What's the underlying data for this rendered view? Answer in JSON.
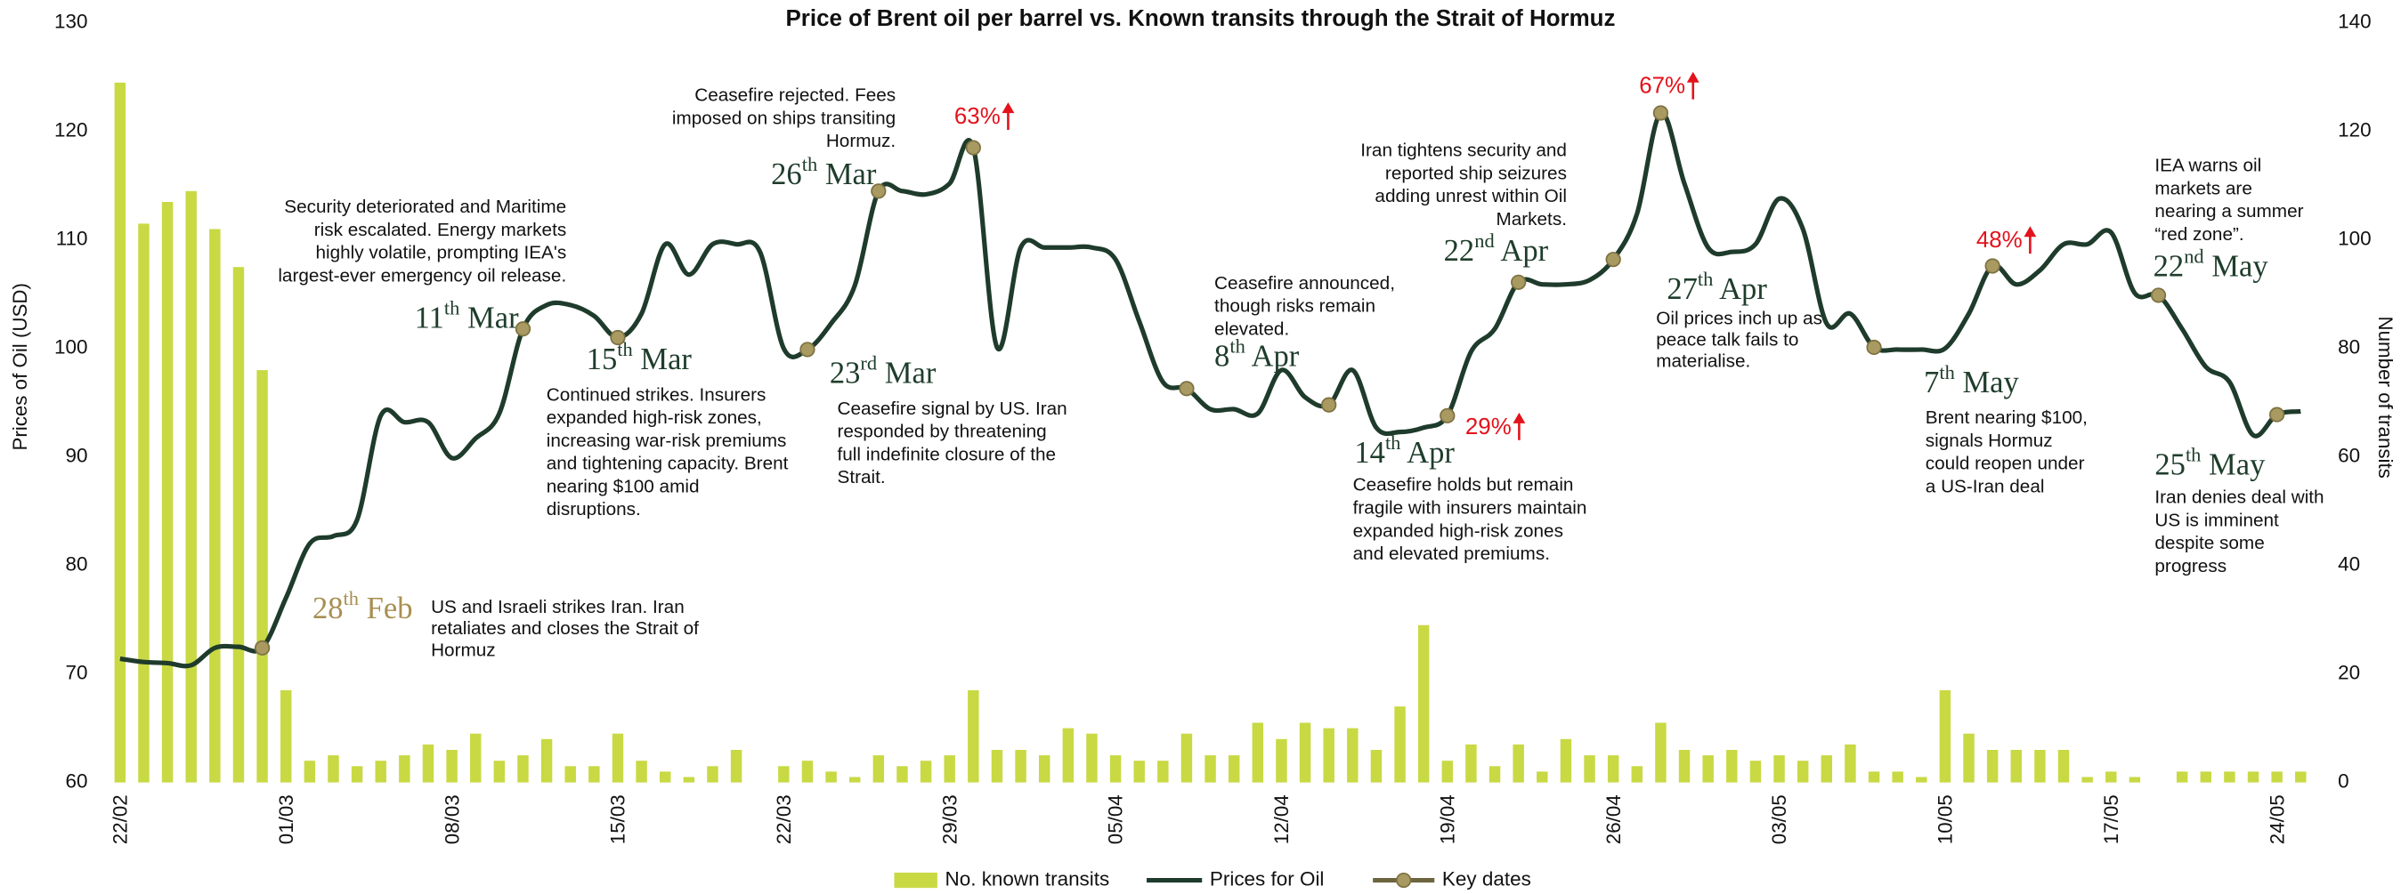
{
  "chart_data": {
    "type": "bar_line",
    "title": "Price of Brent oil per barrel vs. Known transits through the Strait of Hormuz",
    "y_label": "Prices of Oil (USD)",
    "y2_label": "Number of transits",
    "categories": [
      "22/02",
      null,
      null,
      null,
      null,
      null,
      null,
      "01/03",
      null,
      null,
      null,
      null,
      null,
      null,
      "08/03",
      null,
      null,
      null,
      null,
      null,
      null,
      "15/03",
      null,
      null,
      null,
      null,
      null,
      null,
      "22/03",
      null,
      null,
      null,
      null,
      null,
      null,
      "29/03",
      null,
      null,
      null,
      null,
      null,
      null,
      "05/04",
      null,
      null,
      null,
      null,
      null,
      null,
      "12/04",
      null,
      null,
      null,
      null,
      null,
      null,
      "19/04",
      null,
      null,
      null,
      null,
      null,
      null,
      "26/04",
      null,
      null,
      null,
      null,
      null,
      null,
      "03/05",
      null,
      null,
      null,
      null,
      null,
      null,
      "10/05",
      null,
      null,
      null,
      null,
      null,
      null,
      "17/05",
      null,
      null,
      null,
      null,
      null,
      null,
      "24/05",
      null
    ],
    "ylim": [
      60,
      130
    ],
    "yticks": [
      60,
      70,
      80,
      90,
      100,
      110,
      120,
      130
    ],
    "y2lim": [
      0,
      140
    ],
    "y2ticks": [
      0,
      20,
      40,
      60,
      80,
      100,
      120,
      140
    ],
    "grid": false,
    "legend": "bottom",
    "series": [
      {
        "name": "No. known transits",
        "type": "bar",
        "axis": "y2",
        "color": "#c8d944",
        "values": [
          129,
          103,
          107,
          109,
          102,
          95,
          76,
          17,
          4,
          5,
          3,
          4,
          5,
          7,
          6,
          9,
          4,
          5,
          8,
          3,
          3,
          9,
          4,
          2,
          1,
          3,
          6,
          0,
          3,
          4,
          2,
          1,
          5,
          3,
          4,
          5,
          17,
          6,
          6,
          5,
          10,
          9,
          5,
          4,
          4,
          9,
          5,
          5,
          11,
          8,
          11,
          10,
          10,
          6,
          14,
          29,
          4,
          7,
          3,
          7,
          2,
          8,
          5,
          5,
          3,
          11,
          6,
          5,
          6,
          4,
          5,
          4,
          5,
          7,
          2,
          2,
          1,
          17,
          9,
          6,
          6,
          6,
          6,
          1,
          2,
          1,
          0,
          2,
          2,
          2,
          2,
          2,
          2
        ]
      },
      {
        "name": "Prices for Oil",
        "type": "line",
        "color": "#1e3b2b",
        "values": [
          71.4,
          71.1,
          71.0,
          70.8,
          72.4,
          72.5,
          72.4,
          77,
          82,
          82.7,
          84.2,
          93.8,
          93.2,
          93.2,
          89.9,
          91.7,
          94,
          101.8,
          104,
          104,
          103,
          101,
          103.2,
          109.6,
          106.8,
          109.6,
          109.6,
          108.9,
          100,
          99.9,
          102.3,
          105.8,
          114.5,
          114.5,
          114.2,
          115.2,
          118.5,
          100.1,
          109.3,
          109.3,
          109.3,
          109.3,
          108.2,
          102.5,
          96.9,
          96.3,
          94.4,
          94.4,
          94,
          98,
          95.5,
          94.8,
          98,
          92.7,
          92.3,
          92.7,
          93.8,
          99.7,
          101.8,
          106.1,
          105.9,
          105.9,
          106.3,
          108.2,
          112.4,
          121.7,
          115.2,
          109.3,
          108.9,
          109.6,
          113.8,
          111,
          102.3,
          103.2,
          100.1,
          99.9,
          99.9,
          100,
          103.2,
          107.6,
          105.9,
          107.2,
          109.6,
          109.6,
          110.7,
          105.1,
          104.9,
          101.8,
          98.3,
          96.9,
          92,
          93.9,
          94.2
        ]
      },
      {
        "name": "Key dates",
        "type": "marker",
        "color": "#a89a60",
        "values": [
          null,
          null,
          null,
          null,
          null,
          null,
          72.4,
          null,
          null,
          null,
          null,
          null,
          null,
          null,
          null,
          null,
          null,
          101.8,
          null,
          null,
          null,
          101,
          null,
          null,
          null,
          null,
          null,
          null,
          null,
          99.9,
          null,
          null,
          114.5,
          null,
          null,
          null,
          118.5,
          null,
          null,
          null,
          null,
          null,
          null,
          null,
          null,
          96.3,
          null,
          null,
          null,
          null,
          null,
          94.8,
          null,
          null,
          null,
          null,
          93.8,
          null,
          null,
          106.1,
          null,
          null,
          null,
          108.2,
          null,
          121.7,
          null,
          null,
          null,
          null,
          null,
          null,
          null,
          null,
          100.1,
          null,
          null,
          null,
          null,
          107.6,
          null,
          null,
          null,
          null,
          null,
          null,
          104.9,
          null,
          null,
          null,
          null,
          93.9,
          null
        ]
      }
    ],
    "annotations": [
      {
        "label": "28th Feb",
        "lines": [
          "US and Israeli strikes Iran. Iran",
          "retaliates and closes the Strait of",
          "Hormuz"
        ]
      },
      {
        "label": "11th Mar",
        "lines": [
          "Security deteriorated and Maritime",
          "risk escalated. Energy markets",
          "highly volatile, prompting IEA's",
          "largest-ever emergency oil release."
        ]
      },
      {
        "label": "15th Mar",
        "lines": [
          "Continued strikes. Insurers",
          "expanded high-risk zones,",
          "increasing war-risk premiums",
          "and tightening capacity. Brent",
          "nearing $100 amid",
          "disruptions."
        ]
      },
      {
        "label": "23rd Mar",
        "lines": [
          "Ceasefire signal by US. Iran",
          "responded by threatening",
          "full indefinite closure of the",
          "Strait."
        ]
      },
      {
        "label": "26th Mar",
        "lines": [
          "Ceasefire rejected. Fees",
          "imposed on ships transiting",
          "Hormuz."
        ]
      },
      {
        "label": "8th Apr",
        "lines": [
          "Ceasefire announced,",
          "though risks remain",
          "elevated."
        ]
      },
      {
        "label": "14th Apr",
        "lines": [
          "Ceasefire holds but remain",
          "fragile with insurers maintain",
          "expanded high-risk zones",
          "and elevated premiums."
        ]
      },
      {
        "label": "22nd Apr",
        "lines": [
          "Iran tightens security and",
          "reported ship seizures",
          "adding unrest within Oil",
          "Markets."
        ]
      },
      {
        "label": "27th Apr",
        "lines": [
          "Oil prices inch up as",
          "peace talk fails to",
          "materialise."
        ]
      },
      {
        "label": "7th May",
        "lines": [
          "Brent nearing $100,",
          "signals Hormuz",
          "could reopen under",
          "a US-Iran deal"
        ]
      },
      {
        "label": "22nd May",
        "lines": [
          "IEA warns oil",
          "markets are",
          "nearing a summer",
          "“red zone”."
        ]
      },
      {
        "label": "25th May",
        "lines": [
          "Iran denies deal with",
          "US is imminent",
          "despite some",
          "progress"
        ]
      }
    ],
    "callouts": [
      "63%",
      "67%",
      "29%",
      "48%"
    ]
  }
}
